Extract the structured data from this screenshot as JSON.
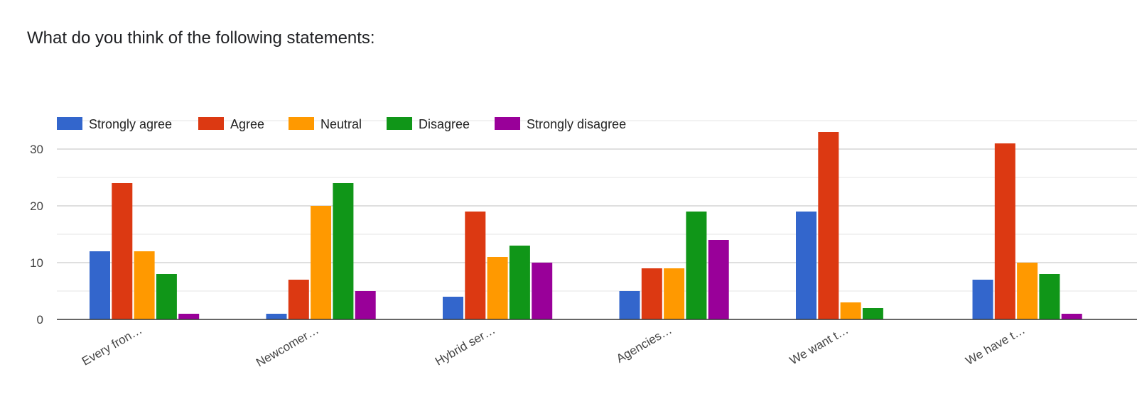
{
  "chart_data": {
    "type": "bar",
    "title": "What do you think of the following statements:",
    "categories": [
      "Every fron…",
      "Newcomer…",
      "Hybrid ser…",
      "Agencies…",
      "We want t…",
      "We have t…"
    ],
    "series": [
      {
        "name": "Strongly agree",
        "color": "#3366cc",
        "values": [
          12,
          1,
          4,
          5,
          19,
          7
        ]
      },
      {
        "name": "Agree",
        "color": "#dc3912",
        "values": [
          24,
          7,
          19,
          9,
          33,
          31
        ]
      },
      {
        "name": "Neutral",
        "color": "#ff9900",
        "values": [
          12,
          20,
          11,
          9,
          3,
          10
        ]
      },
      {
        "name": "Disagree",
        "color": "#109618",
        "values": [
          8,
          24,
          13,
          19,
          2,
          8
        ]
      },
      {
        "name": "Strongly disagree",
        "color": "#990099",
        "values": [
          1,
          5,
          10,
          14,
          0,
          1
        ]
      }
    ],
    "y_ticks": [
      "0",
      "10",
      "20",
      "30"
    ],
    "ylim": [
      0,
      35
    ],
    "xlabel": "",
    "ylabel": "",
    "grid": true,
    "legend_position": "top"
  }
}
